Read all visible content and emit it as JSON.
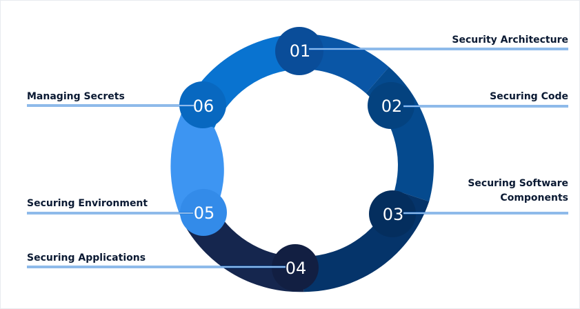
{
  "steps": [
    {
      "number": "01",
      "label": "Security Architecture"
    },
    {
      "number": "02",
      "label": "Securing Code"
    },
    {
      "number": "03",
      "label": "Securing Software Components"
    },
    {
      "number": "04",
      "label": "Securing Applications"
    },
    {
      "number": "05",
      "label": "Securing Environment"
    },
    {
      "number": "06",
      "label": "Managing Secrets"
    }
  ],
  "colors": {
    "segment_01": "#0a56a6",
    "segment_02": "#054a8e",
    "segment_03": "#05346a",
    "segment_04": "#15264e",
    "segment_05": "#3d95f2",
    "segment_06": "#0973d0",
    "leader_line": "#1d74d6",
    "label_text": "#0b1a33"
  }
}
